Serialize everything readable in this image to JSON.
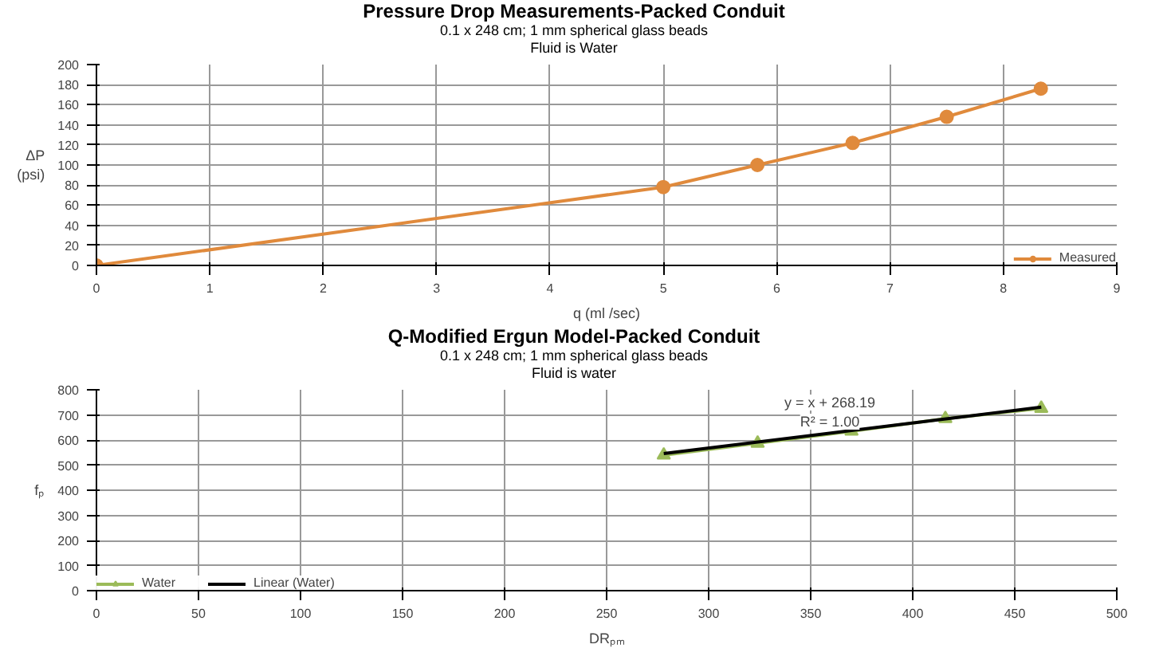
{
  "chart_data": [
    {
      "type": "line",
      "title": "Pressure Drop Measurements-Packed Conduit",
      "subtitle": "0.1 x 248 cm; 1 mm spherical glass beads\nFluid is Water",
      "xlabel": "q (ml /sec)",
      "ylabel": "ΔP\n(psi)",
      "x": [
        0,
        5,
        5.83,
        6.67,
        7.5,
        8.33
      ],
      "series": [
        {
          "name": "Measured",
          "color": "#e08a3c",
          "values": [
            0,
            78,
            100,
            122,
            148,
            176
          ]
        }
      ],
      "xlim": [
        0,
        9
      ],
      "xticks": [
        0,
        1,
        2,
        3,
        4,
        5,
        6,
        7,
        8,
        9
      ],
      "ylim": [
        0,
        200
      ],
      "yticks": [
        0,
        20,
        40,
        60,
        80,
        100,
        120,
        140,
        160,
        180,
        200
      ],
      "grid": true,
      "legend": "bottom right",
      "marker": "circle",
      "line_style": "solid"
    },
    {
      "type": "line",
      "title": "Q-Modified Ergun Model-Packed Conduit",
      "subtitle": "0.1 x 248 cm; 1 mm spherical glass beads\nFluid is water",
      "xlabel": "DRₚₘ",
      "ylabel": "fₚ",
      "x": [
        278,
        324,
        370,
        416,
        463
      ],
      "series": [
        {
          "name": "Water",
          "color": "#9bbb59",
          "values": [
            540,
            587,
            635,
            685,
            726
          ],
          "marker": "triangle"
        },
        {
          "name": "Linear (Water)",
          "color": "#000000",
          "x": [
            278,
            463
          ],
          "values": [
            546,
            731
          ],
          "marker": "none"
        }
      ],
      "annotations": [
        "y = x + 268.19",
        "R² = 1.00"
      ],
      "xlim": [
        0,
        500
      ],
      "xticks": [
        0,
        50,
        100,
        150,
        200,
        250,
        300,
        350,
        400,
        450,
        500
      ],
      "ylim": [
        0,
        800
      ],
      "yticks": [
        0,
        100,
        200,
        300,
        400,
        500,
        600,
        700,
        800
      ],
      "grid": true,
      "legend": "bottom left",
      "line_style": "solid"
    }
  ]
}
